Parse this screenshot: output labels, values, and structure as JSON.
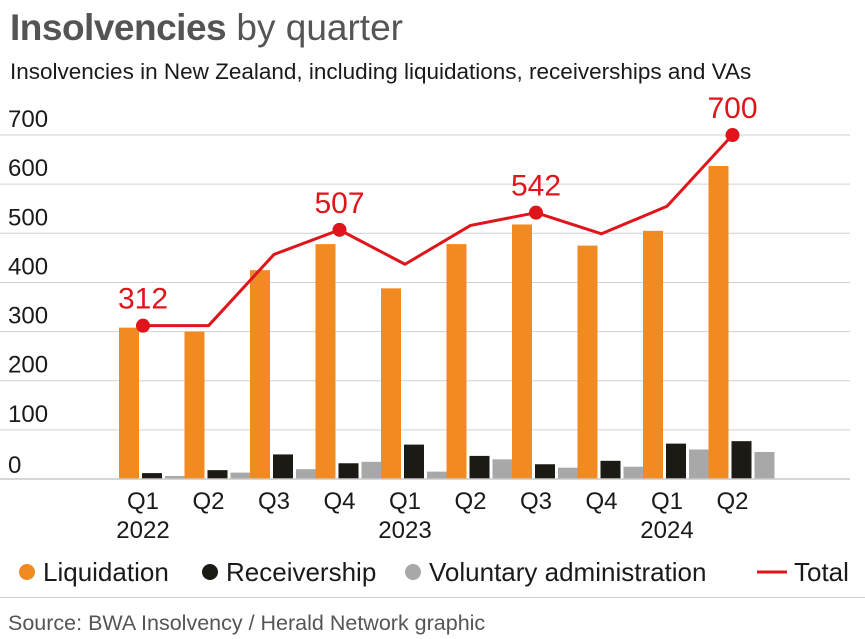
{
  "header": {
    "title_bold": "Insolvencies",
    "title_rest": "by quarter",
    "subtitle": "Insolvencies in New Zealand, including liquidations, receiverships and VAs"
  },
  "source": "Source: BWA Insolvency / Herald Network graphic",
  "colors": {
    "liquidation": "#f28a22",
    "receivership": "#1c1a14",
    "voluntary_administration": "#a8a8a8",
    "total": "#e0151b",
    "grid": "#d0d0d0"
  },
  "chart_data": {
    "type": "bar",
    "x": [
      {
        "quarter": "Q1",
        "year": "2022"
      },
      {
        "quarter": "Q2",
        "year": ""
      },
      {
        "quarter": "Q3",
        "year": ""
      },
      {
        "quarter": "Q4",
        "year": ""
      },
      {
        "quarter": "Q1",
        "year": "2023"
      },
      {
        "quarter": "Q2",
        "year": ""
      },
      {
        "quarter": "Q3",
        "year": ""
      },
      {
        "quarter": "Q4",
        "year": ""
      },
      {
        "quarter": "Q1",
        "year": "2024"
      },
      {
        "quarter": "Q2",
        "year": ""
      }
    ],
    "series": [
      {
        "name": "Liquidation",
        "type": "bar",
        "values": [
          308,
          300,
          425,
          478,
          388,
          478,
          518,
          475,
          505,
          637
        ]
      },
      {
        "name": "Receivership",
        "type": "bar",
        "values": [
          12,
          18,
          50,
          32,
          70,
          47,
          30,
          37,
          72,
          77
        ]
      },
      {
        "name": "Voluntary administration",
        "type": "bar",
        "values": [
          6,
          13,
          20,
          35,
          15,
          40,
          23,
          25,
          60,
          55
        ]
      },
      {
        "name": "Total",
        "type": "line",
        "values": [
          312,
          312,
          457,
          507,
          437,
          516,
          542,
          499,
          555,
          700
        ]
      }
    ],
    "annotations": [
      {
        "index": 0,
        "label": "312"
      },
      {
        "index": 3,
        "label": "507"
      },
      {
        "index": 6,
        "label": "542"
      },
      {
        "index": 9,
        "label": "700"
      }
    ],
    "y_ticks": [
      "0",
      "100",
      "200",
      "300",
      "400",
      "500",
      "600",
      "700"
    ],
    "ylim": [
      0,
      750
    ],
    "grid": true,
    "legend_position": "bottom"
  }
}
